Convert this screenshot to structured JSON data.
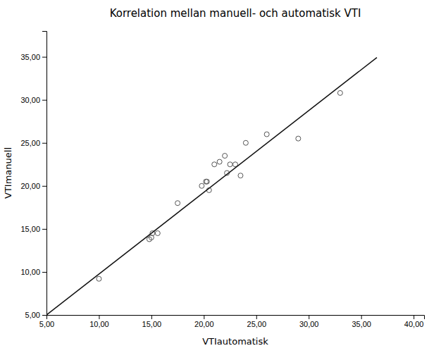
{
  "chart_data": {
    "type": "scatter",
    "title": "Korrelation mellan manuell- och automatisk VTI",
    "xlabel": "VTIautomatisk",
    "ylabel": "VTImanuell",
    "series": [
      {
        "type": "scatter",
        "color": "#555555",
        "marker": "circle-open",
        "x": [
          10.0,
          14.8,
          15.0,
          15.1,
          15.6,
          17.5,
          19.8,
          20.2,
          20.3,
          20.5,
          21.0,
          21.5,
          22.0,
          22.2,
          22.5,
          23.0,
          23.5,
          24.0,
          26.0,
          29.0,
          33.0
        ],
        "values": [
          9.2,
          13.8,
          14.0,
          14.5,
          14.5,
          18.0,
          20.0,
          20.5,
          20.5,
          19.5,
          22.5,
          22.8,
          23.5,
          21.5,
          22.5,
          22.5,
          21.2,
          25.0,
          26.0,
          25.5,
          30.8
        ]
      },
      {
        "type": "line",
        "color": "#111111",
        "line_style": "solid",
        "x": [
          5.0,
          36.5
        ],
        "values": [
          5.0,
          34.925
        ]
      }
    ],
    "xlim": [
      5.0,
      41.0
    ],
    "ylim": [
      5.0,
      38.0
    ],
    "xticks": [
      {
        "value": 5,
        "label": "5,00"
      },
      {
        "value": 10,
        "label": "10,00"
      },
      {
        "value": 15,
        "label": "15,00"
      },
      {
        "value": 20,
        "label": "20,00"
      },
      {
        "value": 25,
        "label": "25,00"
      },
      {
        "value": 30,
        "label": "30,00"
      },
      {
        "value": 35,
        "label": "35,00"
      },
      {
        "value": 40,
        "label": "40,00"
      }
    ],
    "yticks": [
      {
        "value": 5,
        "label": "5,00"
      },
      {
        "value": 10,
        "label": "10,00"
      },
      {
        "value": 15,
        "label": "15,00"
      },
      {
        "value": 20,
        "label": "20,00"
      },
      {
        "value": 25,
        "label": "25,00"
      },
      {
        "value": 30,
        "label": "30,00"
      },
      {
        "value": 35,
        "label": "35,00"
      }
    ],
    "grid": false
  }
}
